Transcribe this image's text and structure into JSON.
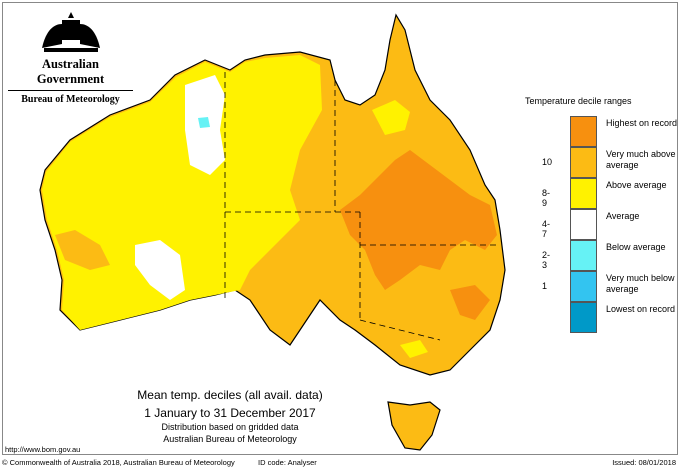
{
  "header": {
    "government": "Australian Government",
    "bureau": "Bureau of Meteorology"
  },
  "legend": {
    "title": "Temperature decile ranges",
    "items": [
      {
        "decile": "",
        "label": "Highest on record",
        "color": "#F7900F"
      },
      {
        "decile": "10",
        "label": "Very much above average",
        "color": "#FCBB14"
      },
      {
        "decile": "8-9",
        "label": "Above average",
        "color": "#FFF200"
      },
      {
        "decile": "4-7",
        "label": "Average",
        "color": "#FFFFFF"
      },
      {
        "decile": "2-3",
        "label": "Below average",
        "color": "#66F2F5"
      },
      {
        "decile": "1",
        "label": "Very much below average",
        "color": "#33C4F0"
      },
      {
        "decile": "",
        "label": "Lowest on record",
        "color": "#0099C8"
      }
    ]
  },
  "caption": {
    "title": "Mean temp. deciles (all avail. data)",
    "period": "1 January to 31 December 2017",
    "note": "Distribution based on gridded data",
    "source": "Australian Bureau of Meteorology"
  },
  "url": "http://www.bom.gov.au",
  "footer": {
    "copyright": "© Commonwealth of Australia 2018, Australian Bureau of Meteorology",
    "id_code": "ID code: Analyser",
    "issued": "Issued: 08/01/2018"
  }
}
